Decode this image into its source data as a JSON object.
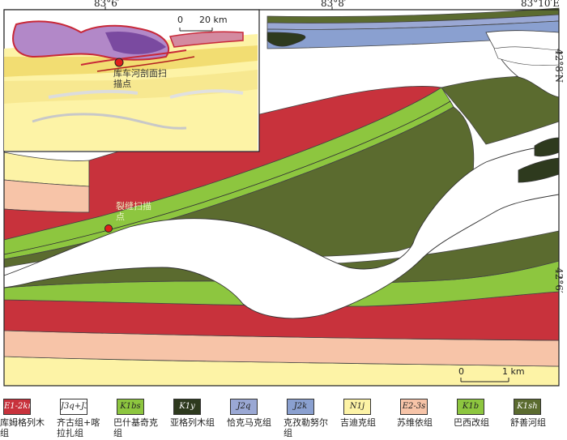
{
  "coordinates": {
    "top": [
      "83°6′",
      "83°8′",
      "83°10′E"
    ],
    "right": [
      "42°8′N",
      "42°6′"
    ]
  },
  "inset": {
    "scale_zero": "0",
    "scale_label": "20 km",
    "point_label": "库车河剖面扫描点"
  },
  "main_map": {
    "point_label": "裂缝扫描点",
    "scale_zero": "0",
    "scale_label": "1 km"
  },
  "legend": [
    {
      "code": "E1-2km",
      "name": "库姆格列木组",
      "color": "#c8323c"
    },
    {
      "code": "J3q+J3k",
      "name": "齐古组+喀拉扎组",
      "color": "#ffffff"
    },
    {
      "code": "K1bs",
      "name": "巴什基奇克组",
      "color": "#8dc63f"
    },
    {
      "code": "K1y",
      "name": "亚格列木组",
      "color": "#2e3a1e"
    },
    {
      "code": "J2q",
      "name": "恰克马克组",
      "color": "#9aa8d4"
    },
    {
      "code": "J2k",
      "name": "克孜勒努尔组",
      "color": "#8aa0d0"
    },
    {
      "code": "N1j",
      "name": "吉迪克组",
      "color": "#fdf3a6"
    },
    {
      "code": "E2-3s",
      "name": "苏维依组",
      "color": "#f7c4a8"
    },
    {
      "code": "K1b",
      "name": "巴西改组",
      "color": "#8dc63f"
    },
    {
      "code": "K1sh",
      "name": "舒善河组",
      "color": "#5b6b2f"
    }
  ]
}
